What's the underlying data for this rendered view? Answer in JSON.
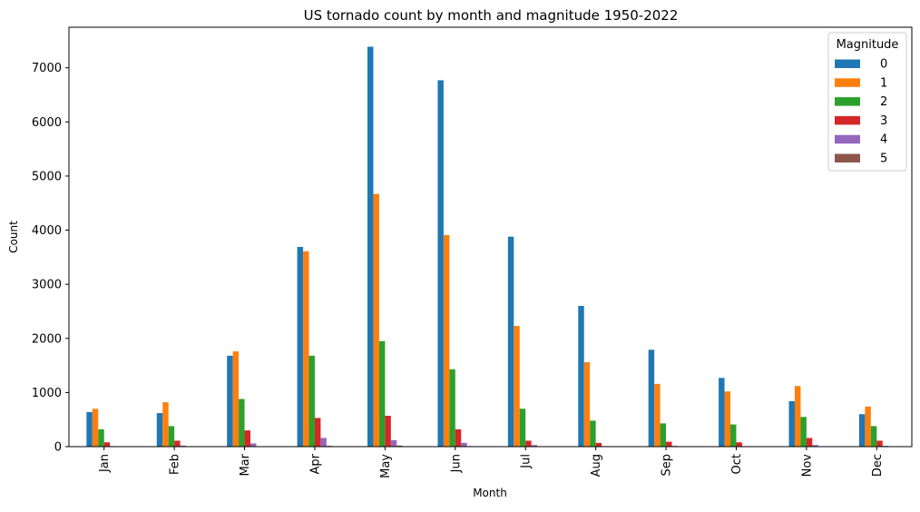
{
  "chart_data": {
    "type": "bar",
    "title": "US tornado count by month and magnitude 1950-2022",
    "xlabel": "Month",
    "ylabel": "Count",
    "ylim": [
      0,
      7750
    ],
    "yticks": [
      0,
      1000,
      2000,
      3000,
      4000,
      5000,
      6000,
      7000
    ],
    "categories": [
      "Jan",
      "Feb",
      "Mar",
      "Apr",
      "May",
      "Jun",
      "Jul",
      "Aug",
      "Sep",
      "Oct",
      "Nov",
      "Dec"
    ],
    "legend_title": "Magnitude",
    "legend_position": "top-right",
    "grid": false,
    "series": [
      {
        "name": "0",
        "color": "#1f77b4",
        "values": [
          640,
          620,
          1680,
          3690,
          7390,
          6770,
          3880,
          2600,
          1790,
          1270,
          840,
          600
        ]
      },
      {
        "name": "1",
        "color": "#ff7f0e",
        "values": [
          700,
          820,
          1760,
          3610,
          4670,
          3910,
          2230,
          1560,
          1160,
          1020,
          1120,
          740
        ]
      },
      {
        "name": "2",
        "color": "#2ca02c",
        "values": [
          320,
          380,
          880,
          1680,
          1950,
          1430,
          700,
          480,
          430,
          410,
          550,
          380
        ]
      },
      {
        "name": "3",
        "color": "#d62728",
        "values": [
          80,
          110,
          300,
          530,
          570,
          320,
          110,
          70,
          90,
          80,
          160,
          110
        ]
      },
      {
        "name": "4",
        "color": "#9467bd",
        "values": [
          10,
          20,
          60,
          160,
          120,
          70,
          30,
          10,
          15,
          10,
          30,
          15
        ]
      },
      {
        "name": "5",
        "color": "#8c564b",
        "values": [
          0,
          2,
          5,
          15,
          20,
          10,
          3,
          1,
          2,
          1,
          3,
          2
        ]
      }
    ]
  }
}
